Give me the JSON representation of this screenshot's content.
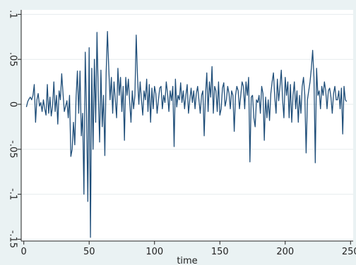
{
  "chart_data": {
    "type": "line",
    "title": "",
    "xlabel": "time",
    "ylabel": "",
    "xlim": [
      -2,
      252
    ],
    "ylim": [
      -0.152,
      0.105
    ],
    "grid": "horizontal",
    "x_ticks": [
      0,
      50,
      100,
      150,
      200,
      250
    ],
    "x_tick_labels": [
      "0",
      "50",
      "100",
      "150",
      "200",
      "250"
    ],
    "y_ticks": [
      -0.15,
      -0.1,
      -0.05,
      0,
      0.05,
      0.1
    ],
    "y_tick_labels": [
      "-.15",
      "-.1",
      "-.05",
      "0",
      ".05",
      ".1"
    ],
    "line_color": "#1f4e79",
    "series": [
      {
        "x_start": 2,
        "x_step": 1,
        "values": [
          -0.003,
          0.003,
          0.006,
          0.008,
          0.005,
          0.01,
          0.022,
          -0.02,
          0.005,
          0.012,
          -0.002,
          0.002,
          -0.008,
          0.005,
          -0.005,
          -0.012,
          0.022,
          -0.01,
          0.008,
          -0.013,
          -0.002,
          0.025,
          -0.008,
          0.01,
          -0.022,
          0.015,
          0.005,
          0.034,
          0.012,
          -0.008,
          -0.002,
          0.004,
          -0.015,
          0.01,
          -0.058,
          -0.05,
          -0.02,
          -0.045,
          0.008,
          0.037,
          -0.01,
          0.037,
          -0.035,
          -0.01,
          -0.1,
          0.058,
          -0.008,
          -0.108,
          0.063,
          -0.148,
          0.04,
          -0.05,
          0.05,
          -0.02,
          0.08,
          0.01,
          -0.042,
          0.038,
          -0.025,
          0.01,
          -0.057,
          0.035,
          0.081,
          0.04,
          0.005,
          0.03,
          -0.01,
          0.025,
          0.005,
          -0.015,
          0.04,
          0.01,
          0.03,
          -0.008,
          0.02,
          -0.04,
          0.03,
          0.01,
          0.028,
          0.003,
          -0.02,
          0.015,
          -0.005,
          0.01,
          0.077,
          0.03,
          0.0,
          0.025,
          0.005,
          -0.012,
          0.015,
          0.005,
          0.028,
          -0.008,
          0.022,
          -0.02,
          0.018,
          -0.005,
          0.02,
          0.012,
          -0.01,
          0.005,
          0.018,
          0.02,
          -0.005,
          0.01,
          0.002,
          0.025,
          0.012,
          -0.008,
          0.015,
          0.004,
          0.02,
          -0.047,
          0.028,
          -0.003,
          0.01,
          0.005,
          0.024,
          0.002,
          0.015,
          -0.005,
          0.01,
          0.022,
          -0.01,
          0.005,
          0.018,
          0.002,
          0.015,
          -0.005,
          0.012,
          0.02,
          0.005,
          -0.01,
          0.01,
          0.015,
          -0.035,
          0.01,
          0.035,
          -0.008,
          0.025,
          0.008,
          0.042,
          -0.01,
          0.02,
          0.015,
          -0.008,
          0.025,
          -0.012,
          -0.005,
          0.018,
          0.024,
          -0.002,
          0.005,
          0.02,
          0.012,
          -0.005,
          0.015,
          0.01,
          -0.03,
          0.01,
          0.02,
          0.015,
          -0.005,
          0.01,
          0.025,
          0.02,
          -0.005,
          0.025,
          0.01,
          0.03,
          -0.064,
          0.008,
          0.01,
          -0.015,
          -0.025,
          0.005,
          0.002,
          0.01,
          -0.01,
          0.02,
          0.012,
          -0.04,
          0.008,
          -0.015,
          0.005,
          -0.018,
          0.012,
          0.025,
          0.035,
          0.008,
          -0.01,
          0.028,
          0.004,
          0.02,
          0.038,
          0.005,
          -0.015,
          0.03,
          0.01,
          0.025,
          -0.015,
          0.022,
          -0.02,
          0.01,
          0.025,
          -0.005,
          0.015,
          -0.02,
          0.01,
          -0.01,
          0.02,
          0.03,
          0.01,
          -0.054,
          0.005,
          0.015,
          0.025,
          0.04,
          0.06,
          0.03,
          -0.065,
          0.04,
          0.01,
          0.015,
          -0.005,
          0.02,
          0.01,
          0.025,
          0.015,
          -0.005,
          0.015,
          0.018,
          0.008,
          -0.01,
          0.012,
          0.02,
          0.005,
          0.005,
          0.015,
          -0.005,
          0.018,
          -0.033,
          0.02,
          0.005,
          0.003
        ]
      }
    ]
  }
}
